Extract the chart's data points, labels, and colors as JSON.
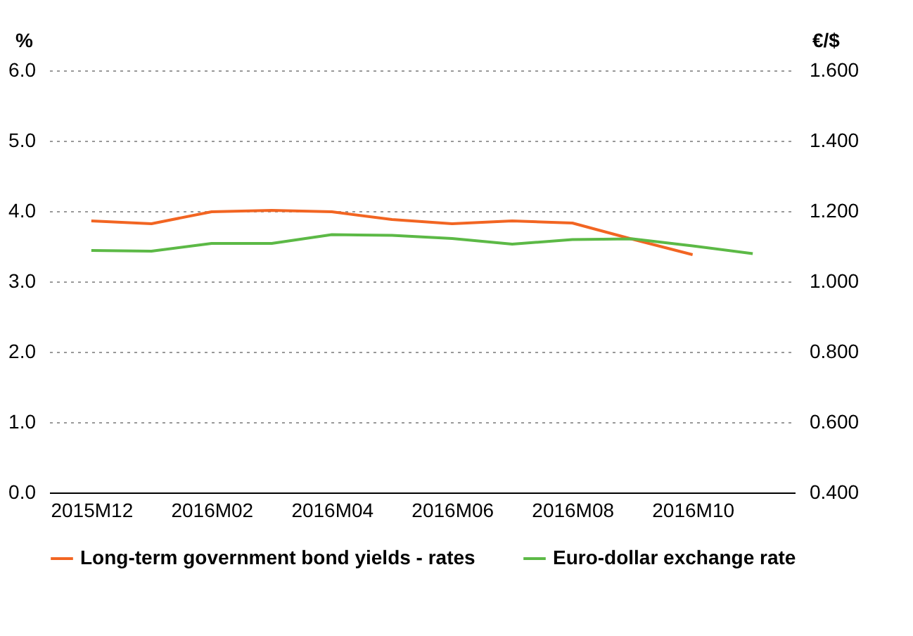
{
  "chart_data": {
    "type": "line",
    "categories": [
      "2015M12",
      null,
      "2016M02",
      null,
      "2016M04",
      null,
      "2016M06",
      null,
      "2016M08",
      null,
      "2016M10",
      null
    ],
    "ylabel": "%",
    "y2label": "€/$",
    "series": [
      {
        "name": "Long-term government bond yields - rates",
        "color": "#f26522",
        "values": [
          3.86,
          3.82,
          3.99,
          4.01,
          3.99,
          3.88,
          3.82,
          3.86,
          3.83,
          3.6,
          3.38,
          null
        ]
      },
      {
        "name": "Euro-dollar exchange rate",
        "color": "#5cb946",
        "axis": "y2",
        "values": [
          1.088,
          1.086,
          1.108,
          1.108,
          1.133,
          1.131,
          1.122,
          1.106,
          1.119,
          1.121,
          1.101,
          1.079
        ]
      }
    ],
    "ylim": [
      0,
      6
    ],
    "yticks": [
      {
        "value": 0,
        "label": "0.0"
      },
      {
        "value": 1,
        "label": "1.0"
      },
      {
        "value": 2,
        "label": "2.0"
      },
      {
        "value": 3,
        "label": "3.0"
      },
      {
        "value": 4,
        "label": "4.0"
      },
      {
        "value": 5,
        "label": "5.0"
      },
      {
        "value": 6,
        "label": "6.0"
      }
    ],
    "y2lim": [
      0.4,
      1.6
    ],
    "y2ticks": [
      {
        "value": 0.4,
        "label": "0.400"
      },
      {
        "value": 0.6,
        "label": "0.600"
      },
      {
        "value": 0.8,
        "label": "0.800"
      },
      {
        "value": 1.0,
        "label": "1.000"
      },
      {
        "value": 1.2,
        "label": "1.200"
      },
      {
        "value": 1.4,
        "label": "1.400"
      },
      {
        "value": 1.6,
        "label": "1.600"
      }
    ],
    "grid": "y",
    "legend": "bottom",
    "line_style": "solid"
  }
}
